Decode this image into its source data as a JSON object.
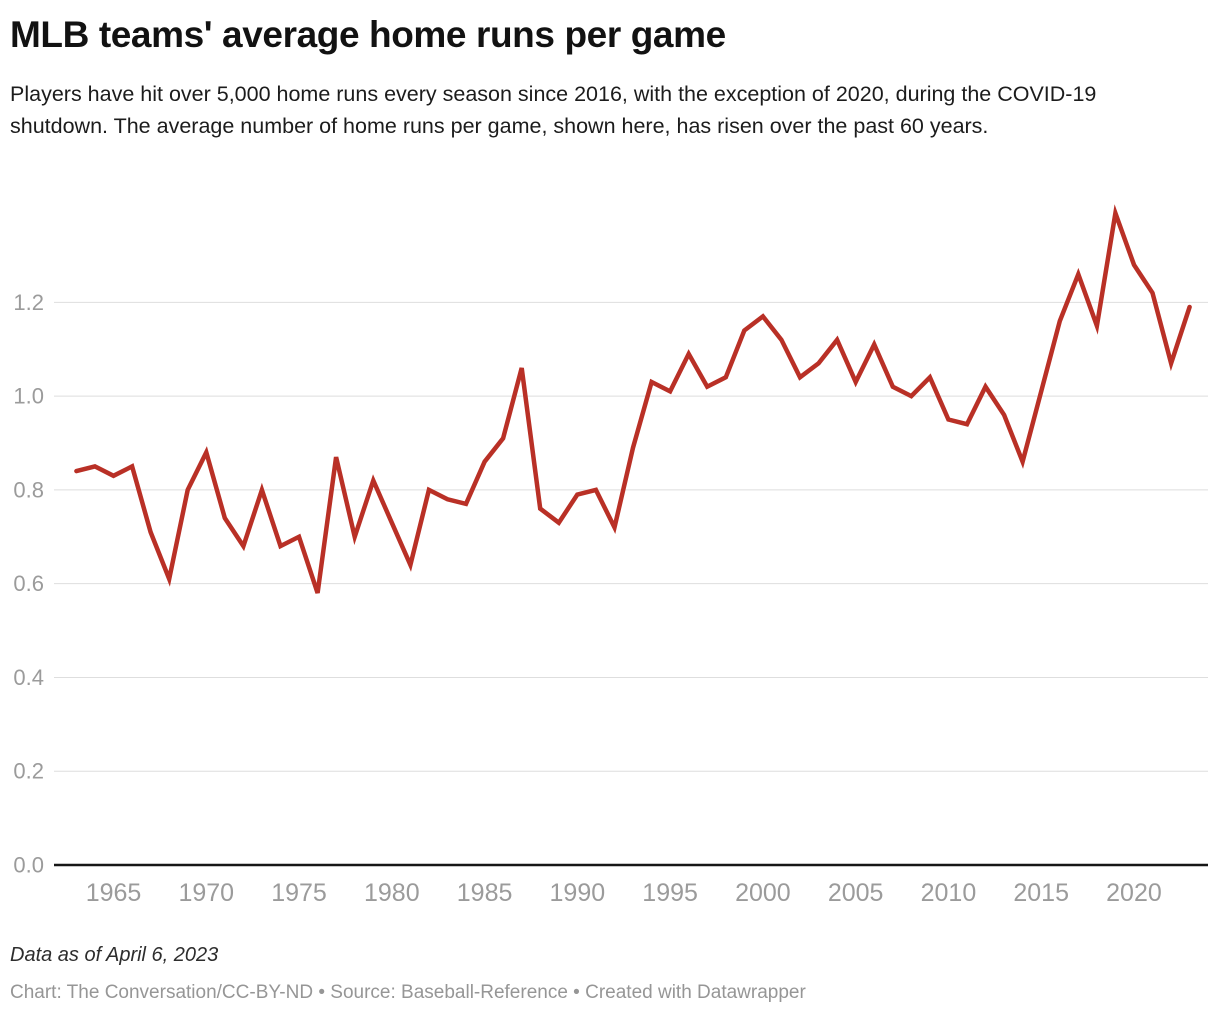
{
  "header": {
    "title": "MLB teams' average home runs per game",
    "subtitle": "Players have hit over 5,000 home runs every season since 2016, with the exception of 2020, during the COVID-19 shutdown. The average number of home runs per game, shown here, has risen over the past 60 years."
  },
  "chart_data": {
    "type": "line",
    "title": "MLB teams' average home runs per game",
    "xlabel": "",
    "ylabel": "",
    "grid": "horizontal",
    "legend": "none",
    "xlim": [
      1963,
      2023
    ],
    "ylim": [
      0,
      1.41
    ],
    "line_color": "#b93026",
    "x_ticks": [
      1965,
      1970,
      1975,
      1980,
      1985,
      1990,
      1995,
      2000,
      2005,
      2010,
      2015,
      2020
    ],
    "y_ticks": [
      {
        "value": 0,
        "label": "0.0"
      },
      {
        "value": 0.2,
        "label": "0.2"
      },
      {
        "value": 0.4,
        "label": "0.4"
      },
      {
        "value": 0.6,
        "label": "0.6"
      },
      {
        "value": 0.8,
        "label": "0.8"
      },
      {
        "value": 1,
        "label": "1.0"
      },
      {
        "value": 1.2,
        "label": "1.2"
      }
    ],
    "x": [
      1963,
      1964,
      1965,
      1966,
      1967,
      1968,
      1969,
      1970,
      1971,
      1972,
      1973,
      1974,
      1975,
      1976,
      1977,
      1978,
      1979,
      1980,
      1981,
      1982,
      1983,
      1984,
      1985,
      1986,
      1987,
      1988,
      1989,
      1990,
      1991,
      1992,
      1993,
      1994,
      1995,
      1996,
      1997,
      1998,
      1999,
      2000,
      2001,
      2002,
      2003,
      2004,
      2005,
      2006,
      2007,
      2008,
      2009,
      2010,
      2011,
      2012,
      2013,
      2014,
      2015,
      2016,
      2017,
      2018,
      2019,
      2020,
      2021,
      2022,
      2023
    ],
    "values": [
      0.84,
      0.85,
      0.83,
      0.85,
      0.71,
      0.61,
      0.8,
      0.88,
      0.74,
      0.68,
      0.8,
      0.68,
      0.7,
      0.58,
      0.87,
      0.7,
      0.82,
      0.73,
      0.64,
      0.8,
      0.78,
      0.77,
      0.86,
      0.91,
      1.06,
      0.76,
      0.73,
      0.79,
      0.8,
      0.72,
      0.89,
      1.03,
      1.01,
      1.09,
      1.02,
      1.04,
      1.14,
      1.17,
      1.12,
      1.04,
      1.07,
      1.12,
      1.03,
      1.11,
      1.02,
      1.0,
      1.04,
      0.95,
      0.94,
      1.02,
      0.96,
      0.86,
      1.01,
      1.16,
      1.26,
      1.15,
      1.39,
      1.28,
      1.22,
      1.07,
      1.19
    ]
  },
  "footer": {
    "note": "Data as of April 6, 2023",
    "attribution": "Chart: The Conversation/CC-BY-ND • Source: Baseball-Reference • Created with Datawrapper"
  },
  "colors": {
    "line": "#b93026",
    "grid": "#dedede",
    "axis": "#161616",
    "tick_label": "#9b9b9b",
    "title": "#121212",
    "subtitle": "#1c1c1c",
    "note": "#2d2d2d",
    "attribution": "#969696",
    "background": "#ffffff"
  }
}
